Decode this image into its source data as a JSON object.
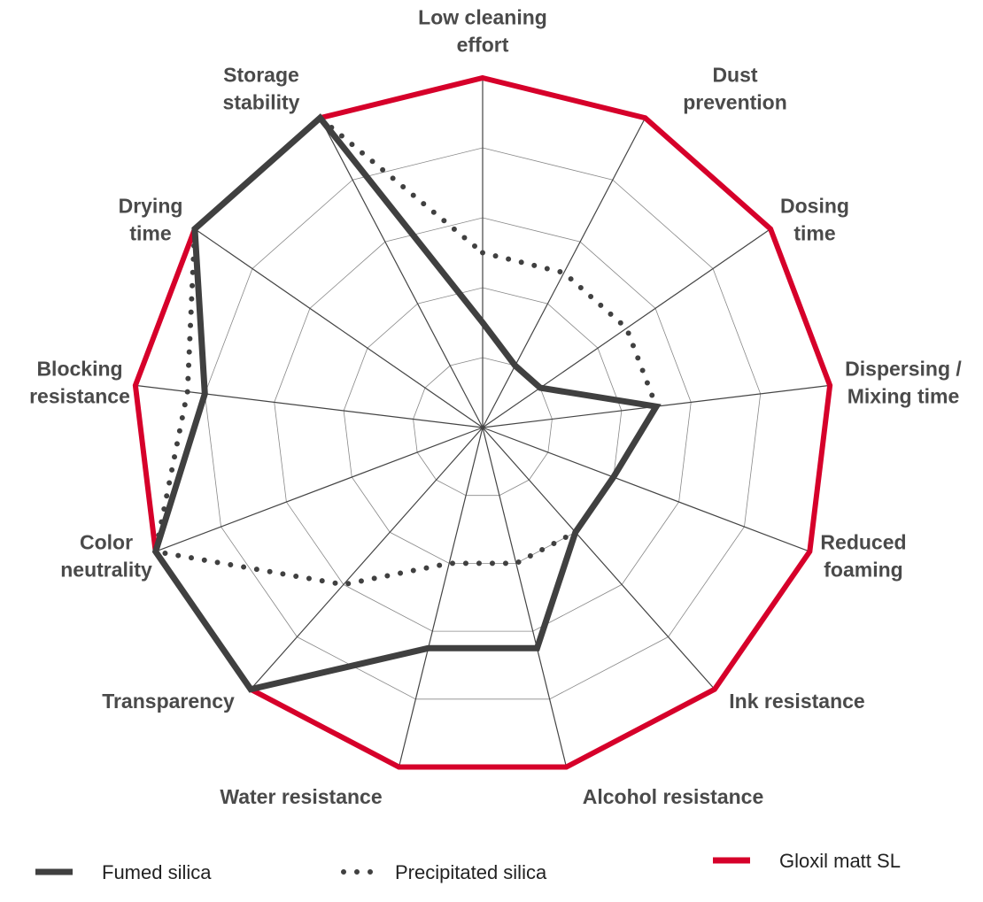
{
  "chart_data": {
    "type": "radar",
    "categories": [
      "Low cleaning\neffort",
      "Dust\nprevention",
      "Dosing\ntime",
      "Dispersing /\nMixing time",
      "Reduced\nfoaming",
      "Ink resistance",
      "Alcohol resistance",
      "Water resistance",
      "Transparency",
      "Color\nneutrality",
      "Blocking\nresistance",
      "Drying\ntime",
      "Storage\nstability"
    ],
    "rlim": [
      0,
      5
    ],
    "rticks": [
      1,
      2,
      3,
      4,
      5
    ],
    "grid": true,
    "legend": "bottom",
    "series": [
      {
        "name": "Gloxil matt SL",
        "color": "#d6002a",
        "style": "solid",
        "values": [
          5,
          5,
          5,
          5,
          5,
          5,
          5,
          5,
          5,
          5,
          5,
          5,
          5
        ]
      },
      {
        "name": "Precipitated silica",
        "color": "#404040",
        "style": "dotted",
        "values": [
          2.5,
          2.5,
          2.5,
          2.5,
          2,
          2,
          2,
          2,
          3,
          5,
          4.25,
          5,
          5
        ]
      },
      {
        "name": "Fumed silica",
        "color": "#404040",
        "style": "solid",
        "values": [
          1.5,
          1,
          1,
          2.5,
          2,
          2,
          3.25,
          3.25,
          5,
          5,
          4,
          5,
          5
        ]
      }
    ]
  }
}
